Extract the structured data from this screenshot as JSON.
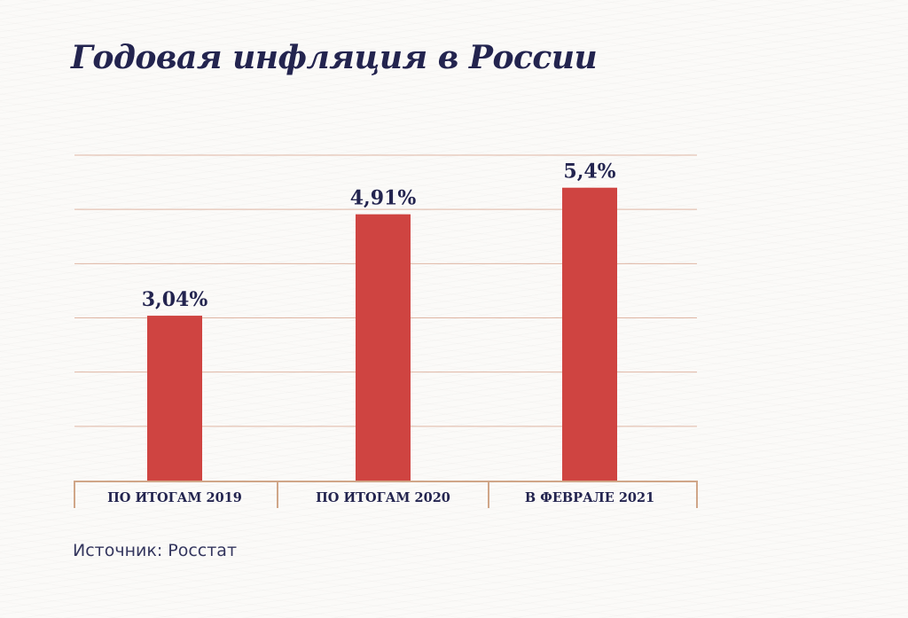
{
  "title": "Годовая инфляция в России",
  "source": "Источник: Росстат",
  "colors": {
    "bar": "#cf4441",
    "grid": "#dfb6a4",
    "axis": "#d0a688",
    "text": "#23244f"
  },
  "chart_data": {
    "type": "bar",
    "title": "Годовая инфляция в России",
    "categories": [
      "ПО ИТОГАМ 2019",
      "ПО ИТОГАМ 2020",
      "В ФЕВРАЛЕ 2021"
    ],
    "values": [
      3.04,
      4.91,
      5.4
    ],
    "labels": [
      "3,04%",
      "4,91%",
      "5,4%"
    ],
    "xlabel": "",
    "ylabel": "",
    "ylim": [
      0,
      6
    ],
    "grid": true
  }
}
